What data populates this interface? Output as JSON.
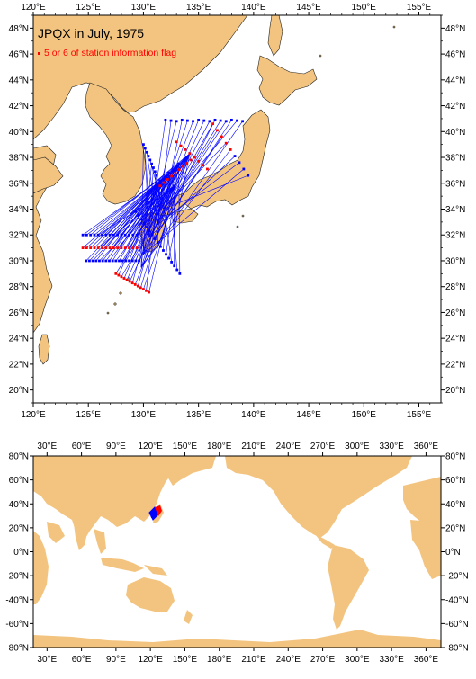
{
  "map_top": {
    "title": "JPQX in July, 1975",
    "legend": {
      "label": "5 or 6 of station information flag",
      "color": "#ff0000"
    },
    "lon_labels": [
      "120°E",
      "125°E",
      "130°E",
      "135°E",
      "140°E",
      "145°E",
      "150°E",
      "155°E"
    ],
    "lat_labels": [
      "20°N",
      "22°N",
      "24°N",
      "26°N",
      "28°N",
      "30°N",
      "32°N",
      "34°N",
      "36°N",
      "38°N",
      "40°N",
      "42°N",
      "44°N",
      "46°N",
      "48°N"
    ],
    "land_color": "#f3c47f",
    "track_color": "#0000ff",
    "flag_color": "#ff0000"
  },
  "map_bottom": {
    "lon_labels": [
      "30°E",
      "60°E",
      "90°E",
      "120°E",
      "150°E",
      "180°E",
      "210°E",
      "240°E",
      "270°E",
      "300°E",
      "330°E",
      "360°E"
    ],
    "lat_labels": [
      "80°N",
      "60°N",
      "40°N",
      "20°N",
      "0°N",
      "-20°N",
      "-40°N",
      "-60°N",
      "-80°N"
    ]
  }
}
